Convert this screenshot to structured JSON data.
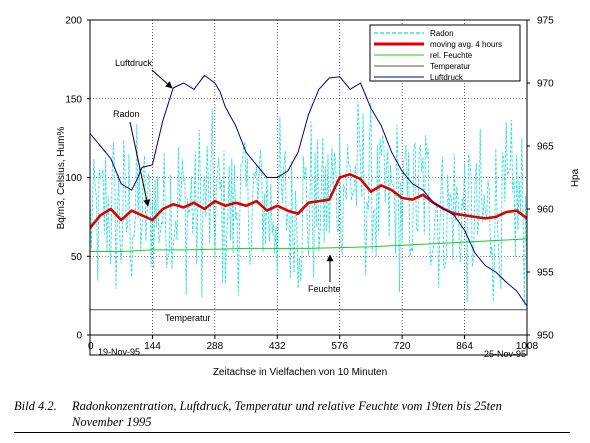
{
  "chart_data": {
    "type": "line",
    "xlabel": "Zeitachse in Vielfachen von 10 Minuten",
    "ylabel_left": "Bq/m3, Celsius, Hum%",
    "ylabel_right": "Hpa",
    "xlim": [
      0,
      1008
    ],
    "ylim_left": [
      0,
      200
    ],
    "ylim_right": [
      950,
      975
    ],
    "x_ticks": [
      0,
      144,
      288,
      432,
      576,
      720,
      864,
      1008
    ],
    "y_ticks_left": [
      0,
      50,
      100,
      150,
      200
    ],
    "y_ticks_right": [
      950,
      955,
      960,
      965,
      970,
      975
    ],
    "grid": true,
    "legend_position": "top-right",
    "start_date_label": "19-Nov-95",
    "end_date_label": "25-Nov-95",
    "series": [
      {
        "name": "Radon",
        "axis": "left",
        "color": "#33dddd",
        "style": "dashed",
        "x": [
          0,
          24,
          48,
          72,
          96,
          120,
          144,
          168,
          192,
          216,
          240,
          264,
          288,
          312,
          336,
          360,
          384,
          408,
          432,
          456,
          480,
          504,
          528,
          552,
          576,
          600,
          624,
          648,
          672,
          696,
          720,
          744,
          768,
          792,
          816,
          840,
          864,
          888,
          912,
          936,
          960,
          984,
          1008
        ],
        "values": [
          70,
          75,
          80,
          72,
          78,
          76,
          74,
          80,
          82,
          84,
          80,
          83,
          85,
          82,
          84,
          83,
          86,
          80,
          83,
          80,
          78,
          84,
          86,
          90,
          95,
          98,
          96,
          90,
          88,
          85,
          84,
          86,
          88,
          85,
          80,
          78,
          76,
          75,
          74,
          76,
          78,
          79,
          74
        ],
        "min": 15,
        "max": 190
      },
      {
        "name": "moving avg. 4 hours",
        "axis": "left",
        "color": "#dd0000",
        "x": [
          0,
          24,
          48,
          72,
          96,
          120,
          144,
          168,
          192,
          216,
          240,
          264,
          288,
          312,
          336,
          360,
          384,
          408,
          432,
          456,
          480,
          504,
          528,
          552,
          576,
          600,
          624,
          648,
          672,
          696,
          720,
          744,
          768,
          792,
          816,
          840,
          864,
          888,
          912,
          936,
          960,
          984,
          1008
        ],
        "values": [
          68,
          76,
          80,
          73,
          79,
          76,
          73,
          80,
          83,
          81,
          84,
          80,
          85,
          82,
          84,
          82,
          85,
          79,
          82,
          79,
          77,
          84,
          85,
          86,
          100,
          102,
          99,
          91,
          95,
          92,
          87,
          86,
          89,
          84,
          80,
          77,
          76,
          75,
          74,
          75,
          78,
          79,
          74
        ]
      },
      {
        "name": "rel. Feuchte",
        "axis": "left",
        "color": "#22cc22",
        "x": [
          0,
          72,
          144,
          216,
          288,
          360,
          432,
          504,
          576,
          648,
          720,
          792,
          864,
          936,
          1008
        ],
        "values": [
          53,
          53,
          54,
          54,
          54.5,
          55,
          55,
          55,
          55.5,
          56,
          57,
          58,
          59,
          60,
          61
        ]
      },
      {
        "name": "Temperatur",
        "axis": "left",
        "color": "#555555",
        "x": [
          0,
          1008
        ],
        "values": [
          16,
          16
        ]
      },
      {
        "name": "Luftdruck",
        "axis": "right",
        "color": "#000099",
        "x": [
          0,
          24,
          48,
          72,
          96,
          108,
          120,
          144,
          168,
          192,
          216,
          240,
          264,
          288,
          300,
          312,
          336,
          360,
          384,
          408,
          432,
          456,
          480,
          504,
          528,
          552,
          576,
          600,
          624,
          648,
          672,
          696,
          720,
          744,
          768,
          792,
          816,
          840,
          864,
          888,
          912,
          936,
          960,
          984,
          1008
        ],
        "values": [
          966,
          965,
          964,
          962,
          961.5,
          962.3,
          963.3,
          963.5,
          967,
          969.6,
          970,
          969.5,
          970.6,
          970,
          969.3,
          968.1,
          966.6,
          964.5,
          963.5,
          962.5,
          962.5,
          963,
          964.5,
          967.5,
          969.5,
          970.4,
          970.5,
          969.5,
          970,
          968,
          966.6,
          964.5,
          963,
          962,
          961.5,
          960.5,
          960,
          959.5,
          958.3,
          956.5,
          955.5,
          955,
          954.2,
          953.5,
          952.3
        ]
      }
    ],
    "legend": [
      "Radon",
      "moving avg. 4 hours",
      "rel. Feuchte",
      "Temperatur",
      "Luftdruck"
    ],
    "annotations": [
      "Luftdruck",
      "Radon",
      "Feuchte",
      "Temperatur"
    ],
    "colors": {
      "radon": "#33dddd",
      "moving_avg": "#dd0000",
      "humidity": "#22cc22",
      "temperature": "#555555",
      "pressure": "#000099",
      "arrow": "#000000"
    }
  },
  "caption": {
    "label": "Bild 4.2.",
    "text_line1": "Radonkonzentration, Luftdruck, Temperatur und relative Feuchte vom 19ten bis 25ten",
    "text_line2": "November 1995"
  }
}
